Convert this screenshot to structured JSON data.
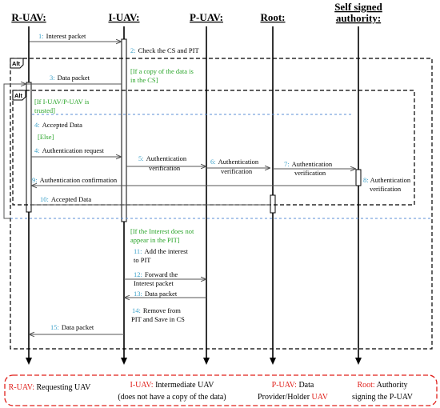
{
  "actors": {
    "r_uav": "R-UAV:",
    "i_uav": "I-UAV:",
    "p_uav": "P-UAV:",
    "root": "Root:",
    "ssa_line1": "Self signed",
    "ssa_line2": "authority:"
  },
  "fragments": {
    "alt_outer": "Alt",
    "alt_inner": "Alt"
  },
  "messages": {
    "m1_num": "1:",
    "m1": "Interest packet",
    "m2_num": "2:",
    "m2": "Check the CS and PIT",
    "cond_copy_1": "[If a copy of the data is",
    "cond_copy_2": "in the CS]",
    "m3_num": "3:",
    "m3": "Data packet",
    "cond_trusted_1": "[If I-UAV/P-UAV is",
    "cond_trusted_2": "trusted]",
    "m4a_num": "4:",
    "m4a": "Accepted Data",
    "cond_else": "[Else]",
    "m4b_num": "4:",
    "m4b": "Authentication request",
    "m5_num": "5:",
    "m5_1": "Authentication",
    "m5_2": "verification",
    "m6_num": "6:",
    "m6_1": "Authentication",
    "m6_2": "verification",
    "m7_num": "7:",
    "m7_1": "Authentication",
    "m7_2": "verification",
    "m8_num": "8:",
    "m8_1": "Authentication",
    "m8_2": "verification",
    "m9_num": "9:",
    "m9": "Authentication confirmation",
    "m10_num": "10:",
    "m10": "Accepted Data",
    "cond_pit_1": "[If the Interest does not",
    "cond_pit_2": "appear in the PIT]",
    "m11_num": "11:",
    "m11_1": "Add the interest",
    "m11_2": "to PIT",
    "m12_num": "12:",
    "m12_1": "Forward the",
    "m12_2": "Interest packet",
    "m13_num": "13:",
    "m13": "Data packet",
    "m14_num": "14:",
    "m14_1": "Remove from",
    "m14_2": "PIT and Save in CS",
    "m15_num": "15:",
    "m15": "Data packet"
  },
  "legend": {
    "r_key": "R-UAV:",
    "r_val": " Requesting UAV",
    "i_key": "I-UAV:",
    "i_val": " Intermediate UAV",
    "i_val2": "(does not have a copy of the data)",
    "p_key": "P-UAV:",
    "p_val": " Data",
    "p_val2a": "Provider/Holder ",
    "p_val2b": "UAV",
    "root_key": "Root:",
    "root_val": " Authority",
    "root_val2": "signing the P-UAV"
  },
  "colors": {
    "number_blue": "#3aa0c8",
    "condition_green": "#2aa52a",
    "legend_red": "#e0201b",
    "divider_blue": "#5b8fd6"
  }
}
